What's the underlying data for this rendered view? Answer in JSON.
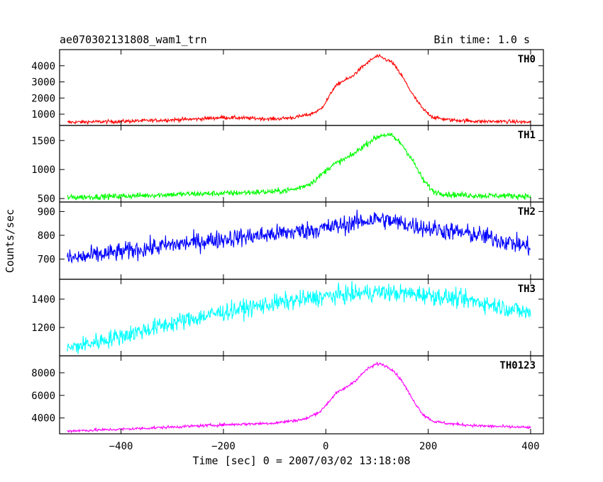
{
  "header": {
    "title": "ae070302131808_wam1_trn",
    "bin_time": "Bin time: 1.0 s"
  },
  "chart_data": {
    "type": "line",
    "xlabel": "Time [sec] 0 = 2007/03/02 13:18:08",
    "ylabel": "Counts/sec",
    "xlim": [
      -520,
      425
    ],
    "xticks": [
      -400,
      -200,
      0,
      200,
      400
    ],
    "x_tick_labels": [
      "−400",
      "−200",
      "0",
      "200",
      "400"
    ],
    "series": [
      {
        "name": "TH0",
        "color": "#ff0000",
        "ylim": [
          300,
          5000
        ],
        "yticks": [
          1000,
          2000,
          3000,
          4000
        ],
        "noise": 80,
        "x": [
          -505,
          -400,
          -300,
          -250,
          -200,
          -150,
          -100,
          -60,
          -30,
          -10,
          5,
          15,
          30,
          50,
          70,
          90,
          100,
          110,
          130,
          150,
          170,
          190,
          210,
          240,
          300,
          350,
          400
        ],
        "y": [
          500,
          550,
          650,
          700,
          800,
          750,
          700,
          800,
          1000,
          1300,
          2000,
          2600,
          3000,
          3300,
          3900,
          4400,
          4600,
          4500,
          4200,
          3300,
          2200,
          1300,
          800,
          650,
          550,
          550,
          500
        ]
      },
      {
        "name": "TH1",
        "color": "#00ff00",
        "ylim": [
          440,
          1760
        ],
        "yticks": [
          500,
          1000,
          1500
        ],
        "noise": 35,
        "x": [
          -505,
          -400,
          -300,
          -200,
          -100,
          -60,
          -30,
          -10,
          10,
          30,
          50,
          70,
          90,
          110,
          130,
          150,
          170,
          190,
          210,
          240,
          300,
          350,
          400
        ],
        "y": [
          520,
          540,
          570,
          590,
          620,
          660,
          760,
          900,
          1060,
          1150,
          1240,
          1380,
          1510,
          1600,
          1580,
          1420,
          1150,
          820,
          620,
          570,
          550,
          550,
          540
        ]
      },
      {
        "name": "TH2",
        "color": "#0000ff",
        "ylim": [
          615,
          940
        ],
        "yticks": [
          700,
          800,
          900
        ],
        "noise": 28,
        "x": [
          -505,
          -400,
          -300,
          -200,
          -100,
          0,
          50,
          100,
          150,
          200,
          300,
          400
        ],
        "y": [
          700,
          730,
          760,
          785,
          805,
          830,
          850,
          870,
          850,
          830,
          800,
          750
        ]
      },
      {
        "name": "TH3",
        "color": "#00ffff",
        "ylim": [
          1000,
          1540
        ],
        "yticks": [
          1200,
          1400
        ],
        "noise": 45,
        "x": [
          -505,
          -400,
          -300,
          -200,
          -100,
          0,
          100,
          200,
          300,
          400
        ],
        "y": [
          1050,
          1140,
          1230,
          1310,
          1370,
          1420,
          1450,
          1430,
          1380,
          1300
        ]
      },
      {
        "name": "TH0123",
        "color": "#ff00ff",
        "ylim": [
          2600,
          9500
        ],
        "yticks": [
          4000,
          6000,
          8000
        ],
        "noise": 90,
        "x": [
          -505,
          -400,
          -300,
          -200,
          -100,
          -40,
          -10,
          5,
          20,
          40,
          60,
          80,
          100,
          110,
          130,
          150,
          170,
          190,
          210,
          240,
          300,
          400
        ],
        "y": [
          2850,
          3000,
          3200,
          3400,
          3550,
          3900,
          4600,
          5400,
          6200,
          6700,
          7400,
          8300,
          8800,
          8750,
          8300,
          7200,
          5600,
          4300,
          3700,
          3500,
          3300,
          3150
        ]
      }
    ]
  }
}
